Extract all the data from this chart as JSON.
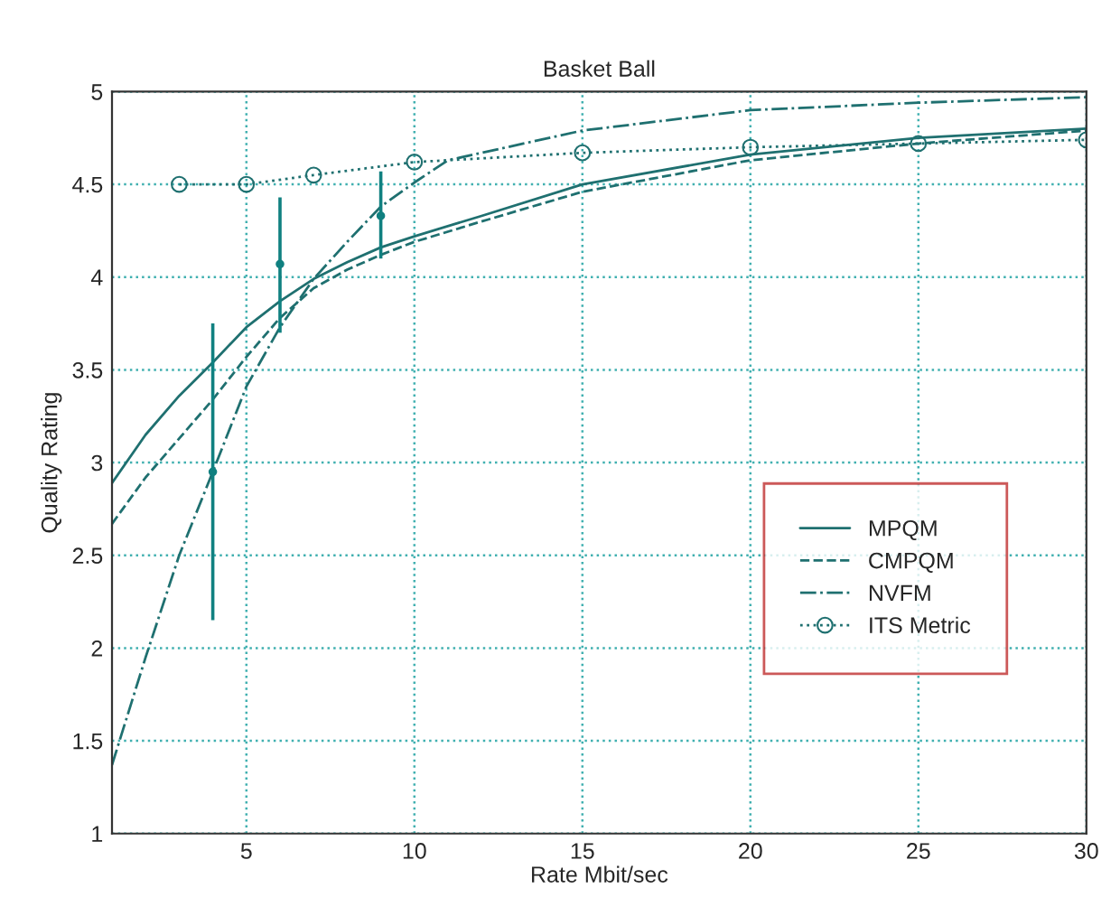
{
  "chart_data": {
    "type": "line",
    "title": "Basket Ball",
    "xlabel": "Rate Mbit/sec",
    "ylabel": "Quality Rating",
    "xlim": [
      1,
      30
    ],
    "ylim": [
      1,
      5
    ],
    "xticks": [
      5,
      10,
      15,
      20,
      25,
      30
    ],
    "yticks": [
      1,
      1.5,
      2,
      2.5,
      3,
      3.5,
      4,
      4.5,
      5
    ],
    "grid": true,
    "legend": "bottom right",
    "series": [
      {
        "name": "MPQM",
        "color": "#1f7070",
        "line_style": "solid",
        "marker": "none",
        "x": [
          1,
          2,
          3,
          4,
          5,
          6,
          7,
          8,
          9,
          10,
          12,
          15,
          20,
          25,
          30
        ],
        "values": [
          2.89,
          3.15,
          3.36,
          3.54,
          3.73,
          3.87,
          3.99,
          4.08,
          4.16,
          4.22,
          4.33,
          4.5,
          4.66,
          4.75,
          4.8
        ]
      },
      {
        "name": "CMPQM",
        "color": "#1f7070",
        "line_style": "dashed",
        "marker": "none",
        "x": [
          1,
          2,
          3,
          4,
          5,
          6,
          7,
          8,
          9,
          10,
          12,
          15,
          20,
          25,
          30
        ],
        "values": [
          2.67,
          2.92,
          3.13,
          3.34,
          3.57,
          3.78,
          3.94,
          4.04,
          4.12,
          4.19,
          4.3,
          4.46,
          4.63,
          4.72,
          4.79
        ]
      },
      {
        "name": "NVFM",
        "color": "#1f7070",
        "line_style": "dashdot",
        "marker": "none",
        "x": [
          1,
          2,
          3,
          4,
          5,
          6,
          7,
          8,
          9,
          10,
          11,
          15,
          20,
          25,
          30
        ],
        "values": [
          1.37,
          1.95,
          2.5,
          2.95,
          3.41,
          3.73,
          3.99,
          4.19,
          4.38,
          4.51,
          4.63,
          4.79,
          4.9,
          4.94,
          4.97
        ]
      },
      {
        "name": "ITS Metric",
        "color": "#1f7070",
        "line_style": "dotted",
        "marker": "circle",
        "x": [
          3,
          5,
          7,
          10,
          15,
          20,
          25,
          30
        ],
        "values": [
          4.5,
          4.5,
          4.55,
          4.62,
          4.67,
          4.7,
          4.72,
          4.74
        ]
      },
      {
        "type": "scatter",
        "color": "#108080",
        "marker": "circle",
        "x": [
          4,
          6,
          9
        ],
        "values": [
          2.95,
          4.07,
          4.33
        ],
        "errors": [
          [
            2.15,
            3.75
          ],
          [
            3.7,
            4.43
          ],
          [
            4.1,
            4.57
          ]
        ]
      }
    ]
  }
}
